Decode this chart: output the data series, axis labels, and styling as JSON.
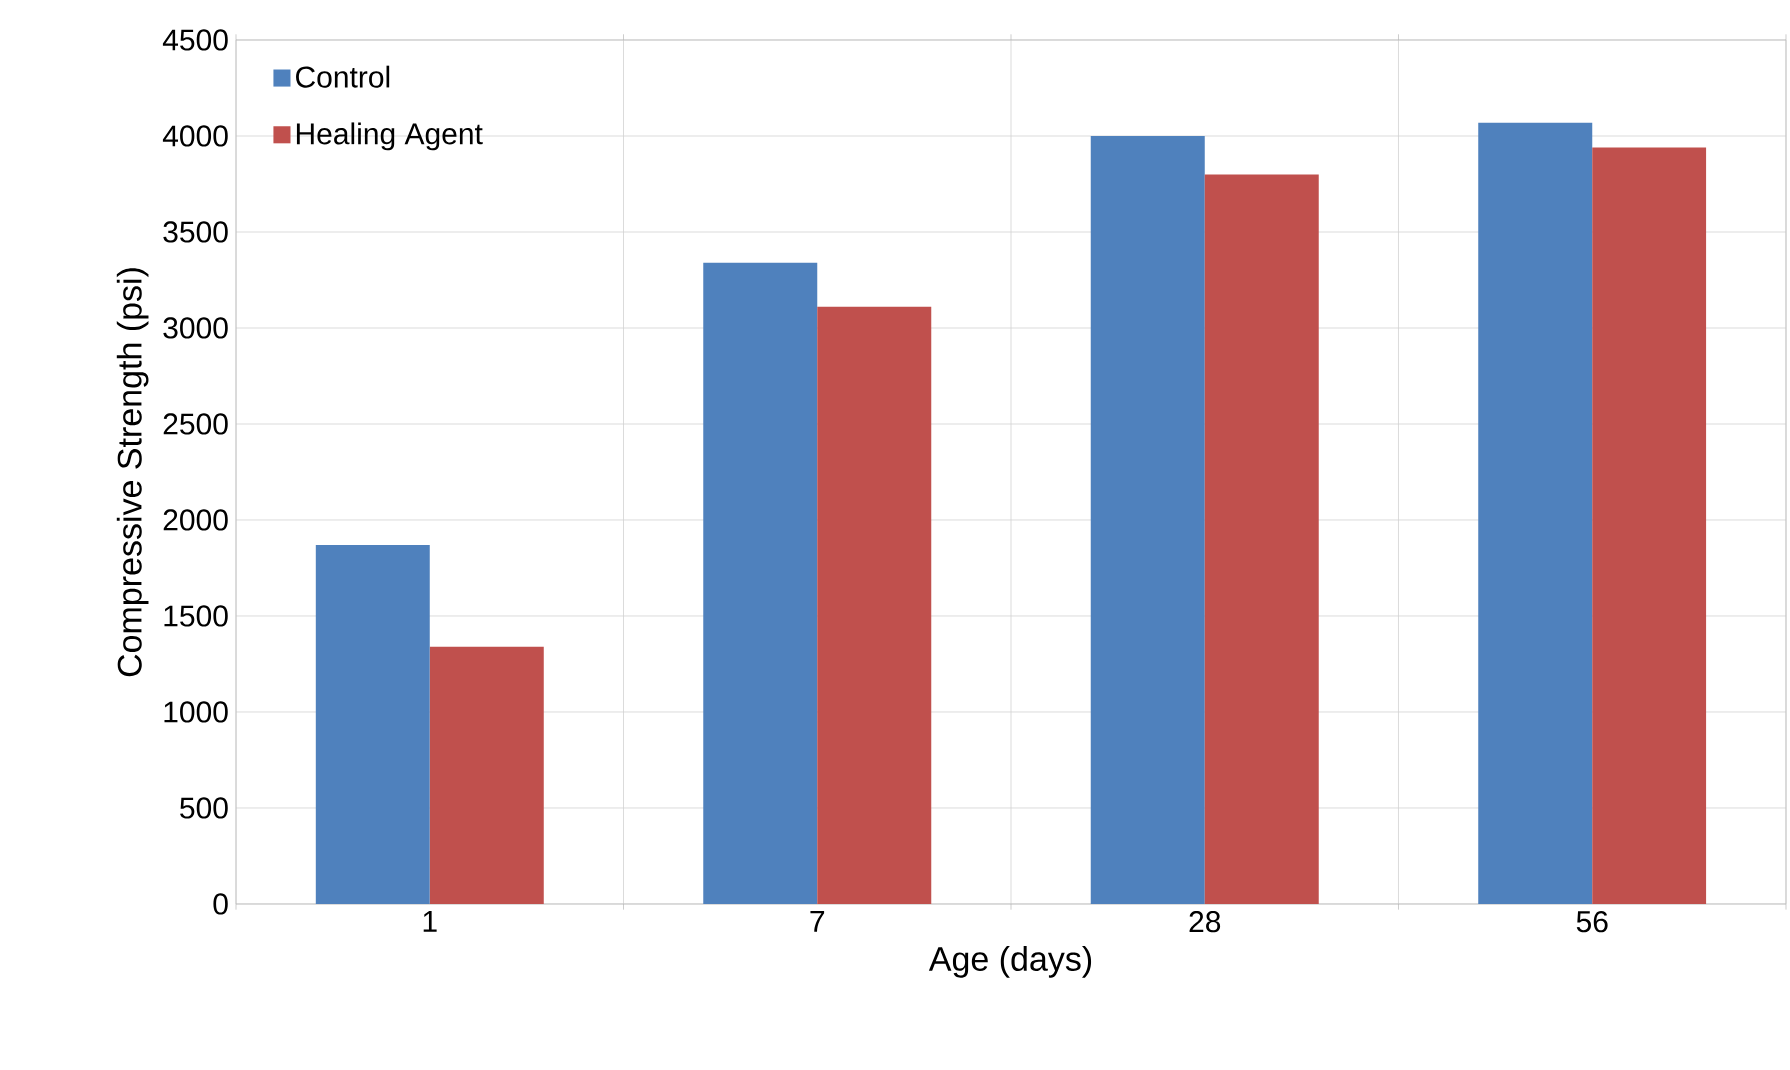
{
  "chart_data": {
    "type": "bar",
    "xlabel": "Age (days)",
    "ylabel": "Compressive Strength (psi)",
    "categories": [
      "1",
      "7",
      "28",
      "56"
    ],
    "series": [
      {
        "name": "Control",
        "color": "#4f81bd",
        "values": [
          1870,
          3340,
          4000,
          4070
        ]
      },
      {
        "name": "Healing Agent",
        "color": "#c0504d",
        "values": [
          1340,
          3110,
          3800,
          3940
        ]
      }
    ],
    "ylim": [
      0,
      4500
    ],
    "yticks": [
      0,
      500,
      1000,
      1500,
      2000,
      2500,
      3000,
      3500,
      4000,
      4500
    ],
    "grid": true,
    "legend": "top left"
  }
}
